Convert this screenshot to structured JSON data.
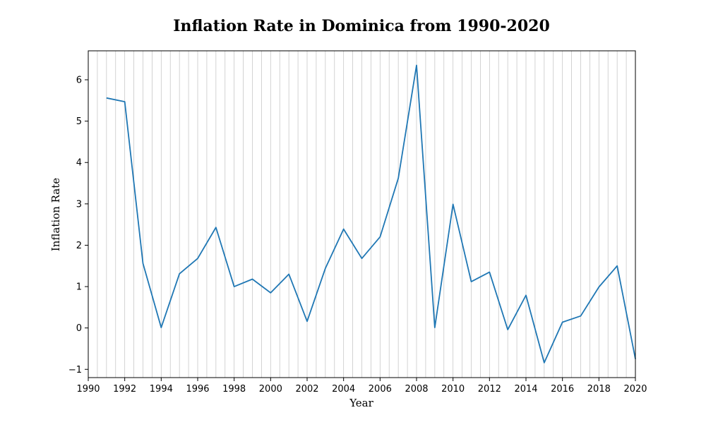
{
  "chart_data": {
    "type": "line",
    "title": "Inflation Rate in Dominica from 1990-2020",
    "xlabel": "Year",
    "ylabel": "Inflation Rate",
    "xlim": [
      1990,
      2020
    ],
    "ylim": [
      -1.2,
      6.7
    ],
    "x_ticks": [
      1990,
      1992,
      1994,
      1996,
      1998,
      2000,
      2002,
      2004,
      2006,
      2008,
      2010,
      2012,
      2014,
      2016,
      2018,
      2020
    ],
    "y_ticks": [
      -1,
      0,
      1,
      2,
      3,
      4,
      5,
      6
    ],
    "grid": "vertical, every 0.5 year",
    "line_color": "#1f77b4",
    "grid_color": "#c8c8c8",
    "series": [
      {
        "x": [
          1991,
          1992,
          1993,
          1994,
          1995,
          1996,
          1997,
          1998,
          1999,
          2000,
          2001,
          2002,
          2003,
          2004,
          2005,
          2006,
          2007,
          2008,
          2009,
          2010,
          2011,
          2012,
          2013,
          2014,
          2015,
          2016,
          2017,
          2018,
          2019,
          2020
        ],
        "values": [
          5.56,
          5.47,
          1.56,
          0.01,
          1.31,
          1.68,
          2.43,
          1.0,
          1.18,
          0.85,
          1.3,
          0.16,
          1.44,
          2.39,
          1.68,
          2.2,
          3.62,
          6.35,
          0.01,
          2.99,
          1.12,
          1.35,
          -0.04,
          0.79,
          -0.84,
          0.14,
          0.29,
          0.99,
          1.5,
          -0.75
        ]
      }
    ]
  }
}
